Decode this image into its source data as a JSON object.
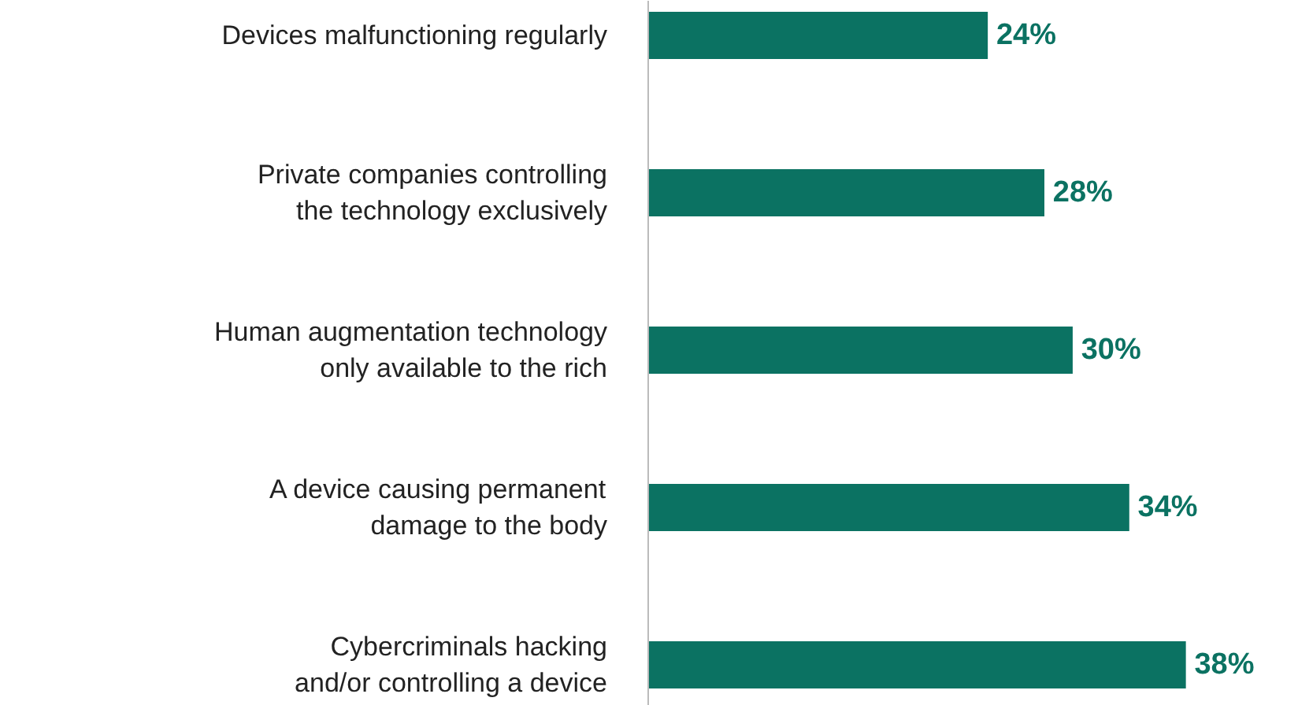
{
  "chart_data": {
    "type": "bar",
    "orientation": "horizontal",
    "categories": [
      "Devices malfunctioning regularly",
      "Private companies controlling\nthe technology exclusively",
      "Human augmentation technology\nonly available to the rich",
      "A device causing permanent\ndamage to the body",
      "Cybercriminals hacking\nand/or controlling a device"
    ],
    "values": [
      24,
      28,
      30,
      34,
      38
    ],
    "color": "#0b7262",
    "data_labels": true,
    "value_labels": [
      "24%",
      "28%",
      "30%",
      "34%",
      "38%"
    ],
    "tick_labels": "y"
  }
}
